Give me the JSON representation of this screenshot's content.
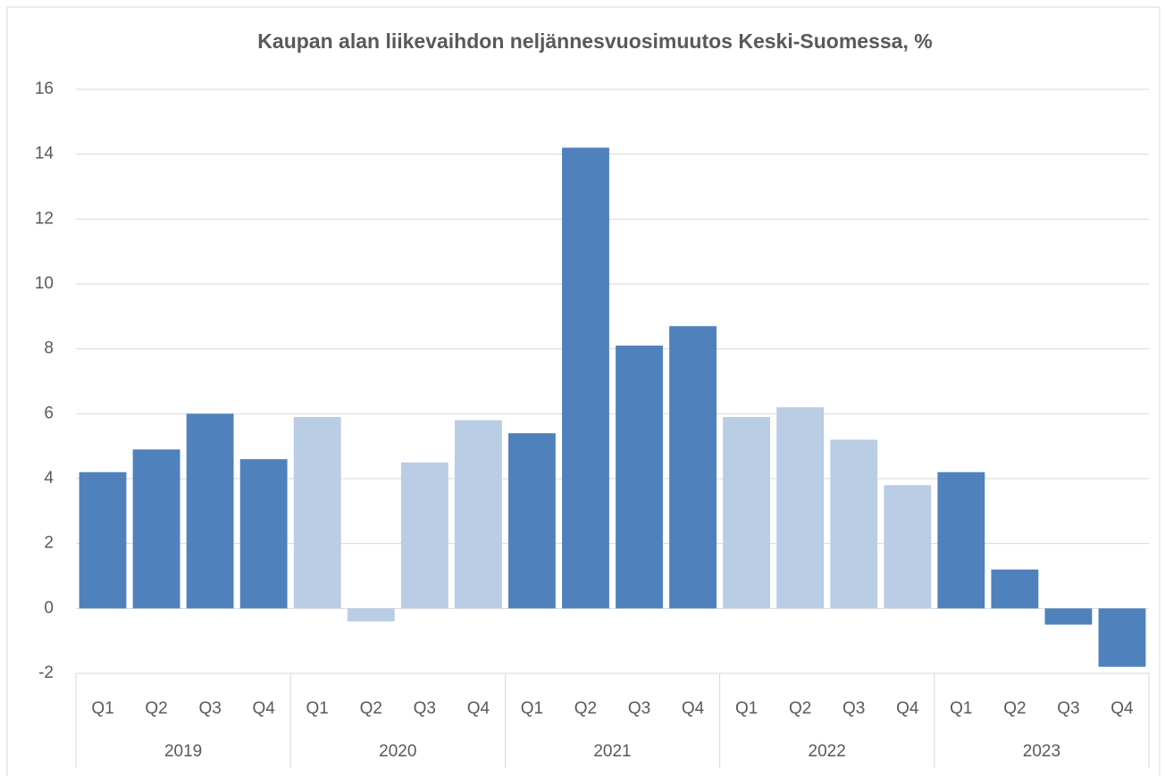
{
  "chart_data": {
    "type": "bar",
    "title": "Kaupan alan liikevaihdon neljännesvuosimuutos Keski-Suomessa, %",
    "categories": [
      "Q1",
      "Q2",
      "Q3",
      "Q4",
      "Q1",
      "Q2",
      "Q3",
      "Q4",
      "Q1",
      "Q2",
      "Q3",
      "Q4",
      "Q1",
      "Q2",
      "Q3",
      "Q4",
      "Q1",
      "Q2",
      "Q3",
      "Q4"
    ],
    "groups": [
      "2019",
      "2020",
      "2021",
      "2022",
      "2023"
    ],
    "values": [
      4.2,
      4.9,
      6.0,
      4.6,
      5.9,
      -0.4,
      4.5,
      5.8,
      5.4,
      14.2,
      8.1,
      8.7,
      5.9,
      6.2,
      5.2,
      3.8,
      4.2,
      1.2,
      -0.5,
      -1.8
    ],
    "colors": [
      "#4f81bd",
      "#4f81bd",
      "#4f81bd",
      "#4f81bd",
      "#b9cde5",
      "#b9cde5",
      "#b9cde5",
      "#b9cde5",
      "#4f81bd",
      "#4f81bd",
      "#4f81bd",
      "#4f81bd",
      "#b9cde5",
      "#b9cde5",
      "#b9cde5",
      "#b9cde5",
      "#4f81bd",
      "#4f81bd",
      "#4f81bd",
      "#4f81bd"
    ],
    "ylim": [
      -2,
      16
    ],
    "yticks": [
      -2,
      0,
      2,
      4,
      6,
      8,
      10,
      12,
      14,
      16
    ],
    "grid": true
  }
}
